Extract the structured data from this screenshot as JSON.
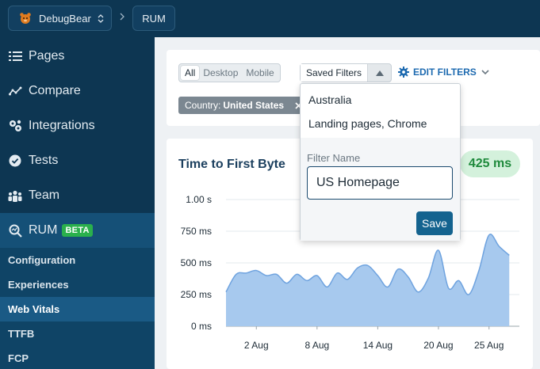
{
  "colors": {
    "sidebar_bg": "#0d3652",
    "accent_blue": "#1d6ab0",
    "beta_green": "#2ab04c",
    "ttfb_good": "#1f8a3c",
    "area_fill": "#a7c9ee",
    "area_stroke": "#6fa3df"
  },
  "breadcrumb": {
    "project": "DebugBear",
    "section": "RUM"
  },
  "sidebar": {
    "items": [
      {
        "label": "Pages",
        "icon": "list-icon"
      },
      {
        "label": "Compare",
        "icon": "compare-icon"
      },
      {
        "label": "Integrations",
        "icon": "integrations-icon"
      },
      {
        "label": "Tests",
        "icon": "check-circle-icon"
      },
      {
        "label": "Team",
        "icon": "team-icon"
      },
      {
        "label": "RUM",
        "icon": "rum-search-icon",
        "badge": "BETA"
      }
    ],
    "sub_items": [
      {
        "label": "Configuration"
      },
      {
        "label": "Experiences"
      },
      {
        "label": "Web Vitals"
      },
      {
        "label": "TTFB"
      },
      {
        "label": "FCP"
      }
    ]
  },
  "filters": {
    "device_tabs": [
      "All",
      "Desktop",
      "Mobile"
    ],
    "selected_device": "All",
    "saved_filters_label": "Saved Filters",
    "edit_filters_label": "EDIT FILTERS",
    "active_chip": {
      "key": "Country:",
      "value": "United States"
    }
  },
  "saved_filters_menu": {
    "options": [
      "Australia",
      "Landing pages, Chrome"
    ],
    "filter_name_label": "Filter Name",
    "filter_name_value": "US Homepage",
    "save_label": "Save"
  },
  "chart_panel": {
    "title": "Time to First Byte",
    "value": "425 ms"
  },
  "chart_data": {
    "type": "area",
    "title": "Time to First Byte",
    "y_tick_labels": [
      "0 ms",
      "250 ms",
      "500 ms",
      "750 ms",
      "1.00 s"
    ],
    "y_ticks_ms": [
      0,
      250,
      500,
      750,
      1000
    ],
    "ylim_ms": [
      0,
      1000
    ],
    "x_tick_labels": [
      "2 Aug",
      "8 Aug",
      "14 Aug",
      "20 Aug",
      "25 Aug"
    ],
    "x_tick_day_index": [
      3,
      9,
      15,
      21,
      26
    ],
    "x_day_range": [
      0,
      29
    ],
    "gridlines": true,
    "series": [
      {
        "values_ms": [
          270,
          410,
          420,
          440,
          400,
          410,
          340,
          410,
          360,
          400,
          310,
          420,
          370,
          460,
          480,
          400,
          310,
          450,
          390,
          270,
          380,
          600,
          300,
          360,
          250,
          440,
          720,
          630,
          560
        ]
      }
    ]
  }
}
